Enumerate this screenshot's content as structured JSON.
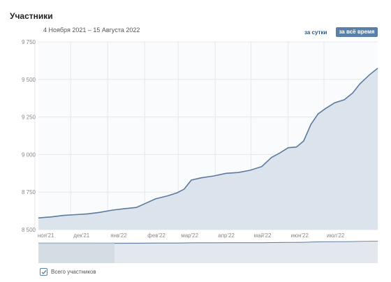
{
  "header": {
    "title": "Участники",
    "date_range": "4 Ноября 2021 – 15 Августа 2022",
    "btn_day": "за сутки",
    "btn_all": "за всё время"
  },
  "legend": {
    "label": "Всего участников",
    "checked": true
  },
  "colors": {
    "line": "#5b7a9d",
    "fill": "#dbe4ed",
    "accent": "#5b80a8",
    "grid": "#e7e8ec",
    "tick": "#888888"
  },
  "chart_data": {
    "type": "area",
    "title": "",
    "xlabel": "",
    "ylabel": "",
    "ylim": [
      8500,
      9750
    ],
    "yticks": [
      8500,
      8750,
      9000,
      9250,
      9500,
      9750
    ],
    "ytick_labels": [
      "8 500",
      "8 750",
      "9 000",
      "9 250",
      "9 500",
      "9 750"
    ],
    "xtick_labels": [
      "ноя'21",
      "дек'21",
      "янв'22",
      "фев'22",
      "мар'22",
      "апр'22",
      "май'22",
      "июн'22",
      "июл'22"
    ],
    "xtick_dates": [
      "2021-11-01",
      "2021-12-01",
      "2022-01-01",
      "2022-02-01",
      "2022-03-01",
      "2022-04-01",
      "2022-05-01",
      "2022-06-01",
      "2022-07-01"
    ],
    "xlim": [
      "2021-11-04",
      "2022-08-15"
    ],
    "grid": true,
    "series": [
      {
        "name": "Всего участников",
        "points": [
          [
            "2021-11-04",
            8578
          ],
          [
            "2021-11-15",
            8585
          ],
          [
            "2021-11-25",
            8595
          ],
          [
            "2021-12-05",
            8600
          ],
          [
            "2021-12-15",
            8605
          ],
          [
            "2021-12-25",
            8615
          ],
          [
            "2022-01-05",
            8630
          ],
          [
            "2022-01-15",
            8640
          ],
          [
            "2022-01-25",
            8648
          ],
          [
            "2022-02-03",
            8680
          ],
          [
            "2022-02-10",
            8705
          ],
          [
            "2022-02-20",
            8725
          ],
          [
            "2022-02-28",
            8745
          ],
          [
            "2022-03-06",
            8770
          ],
          [
            "2022-03-12",
            8830
          ],
          [
            "2022-03-20",
            8845
          ],
          [
            "2022-03-31",
            8858
          ],
          [
            "2022-04-10",
            8875
          ],
          [
            "2022-04-20",
            8880
          ],
          [
            "2022-04-30",
            8895
          ],
          [
            "2022-05-10",
            8920
          ],
          [
            "2022-05-18",
            8980
          ],
          [
            "2022-05-25",
            9010
          ],
          [
            "2022-06-01",
            9045
          ],
          [
            "2022-06-08",
            9050
          ],
          [
            "2022-06-14",
            9090
          ],
          [
            "2022-06-20",
            9200
          ],
          [
            "2022-06-26",
            9270
          ],
          [
            "2022-07-02",
            9305
          ],
          [
            "2022-07-10",
            9345
          ],
          [
            "2022-07-18",
            9365
          ],
          [
            "2022-07-25",
            9410
          ],
          [
            "2022-07-31",
            9470
          ],
          [
            "2022-08-08",
            9530
          ],
          [
            "2022-08-15",
            9575
          ]
        ]
      }
    ]
  }
}
